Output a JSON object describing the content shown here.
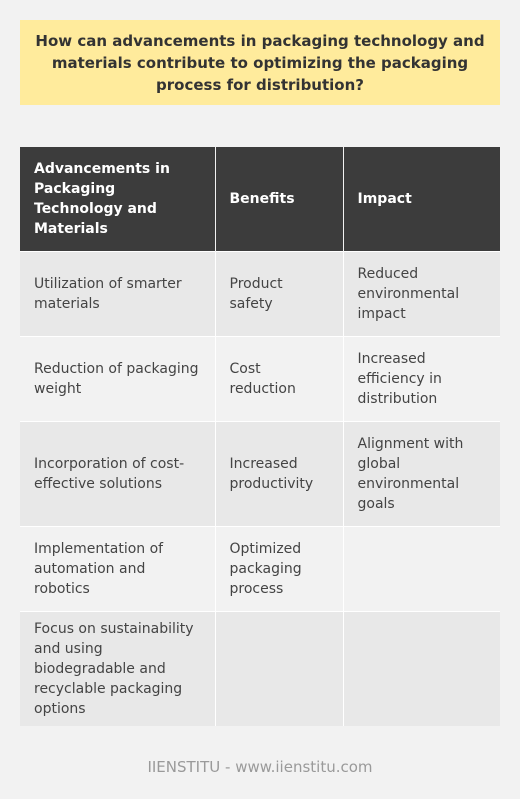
{
  "question": "How can advancements in packaging technology and materials contribute to optimizing the packaging process for distribution?",
  "table": {
    "headers": [
      "Advancements in Packaging Technology and Materials",
      "Benefits",
      "Impact"
    ],
    "rows": [
      [
        "Utilization of smarter materials",
        "Product safety",
        "Reduced environmental impact"
      ],
      [
        "Reduction of packaging weight",
        "Cost reduction",
        "Increased efficiency in distribution"
      ],
      [
        "Incorporation of cost-effective solutions",
        "Increased productivity",
        "Alignment with global environmental goals"
      ],
      [
        "Implementation of automation and robotics",
        "Optimized packaging process",
        ""
      ],
      [
        "Focus on sustainability and using biodegradable and recyclable packaging options",
        "",
        ""
      ]
    ]
  },
  "footer": "IIENSTITU - www.iienstitu.com"
}
